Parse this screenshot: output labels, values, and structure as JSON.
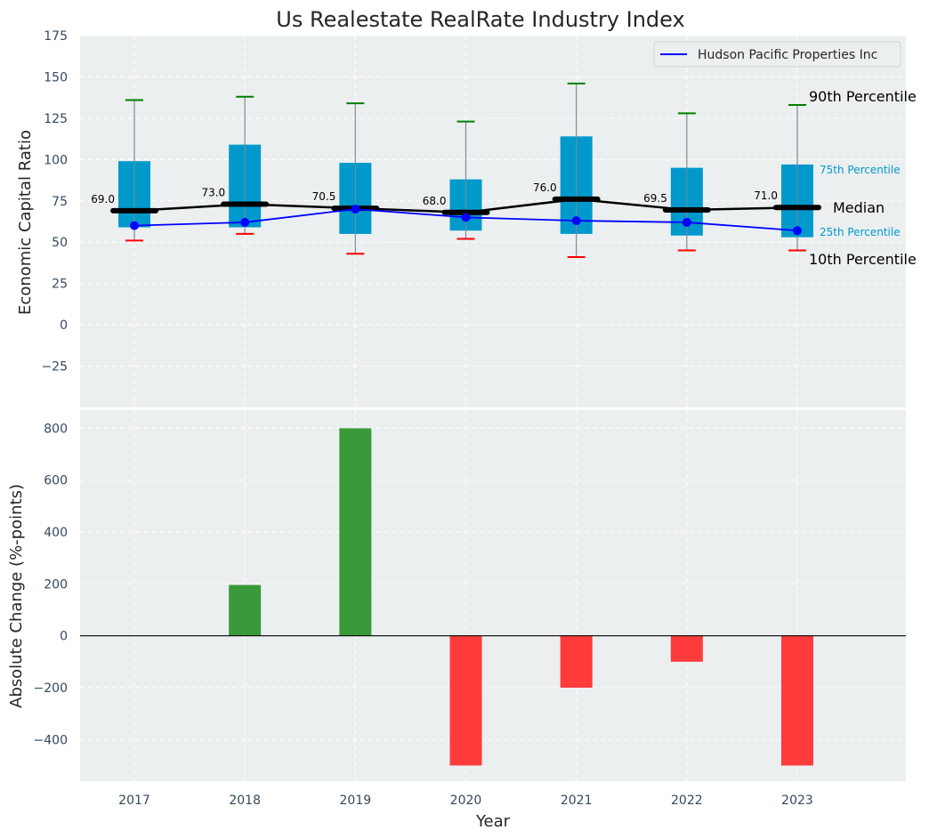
{
  "chart_data": [
    {
      "type": "box",
      "title": "Us Realestate RealRate Industry Index",
      "ylabel": "Economic Capital Ratio",
      "ylim": [
        -50,
        175
      ],
      "yticks": [
        -25,
        0,
        25,
        50,
        75,
        100,
        125,
        150,
        175
      ],
      "categories": [
        "2017",
        "2018",
        "2019",
        "2020",
        "2021",
        "2022",
        "2023"
      ],
      "p10": [
        51,
        55,
        43,
        52,
        41,
        45,
        45
      ],
      "p25": [
        59,
        59,
        55,
        57,
        55,
        54,
        53
      ],
      "median": [
        69.0,
        73.0,
        70.5,
        68.0,
        76.0,
        69.5,
        71.0
      ],
      "median_labels": [
        "69.0",
        "73.0",
        "70.5",
        "68.0",
        "76.0",
        "69.5",
        "71.0"
      ],
      "p75": [
        99,
        109,
        98,
        88,
        114,
        95,
        97
      ],
      "p90": [
        136,
        138,
        134,
        123,
        146,
        128,
        133
      ],
      "series": [
        {
          "name": "Hudson Pacific Properties Inc",
          "values": [
            60,
            62,
            70,
            65,
            63,
            62,
            57
          ],
          "color": "#0000ff"
        }
      ],
      "annotations": {
        "p90": "90th Percentile",
        "p75": "75th Percentile",
        "median": "Median",
        "p25": "25th Percentile",
        "p10": "10th Percentile"
      },
      "legend_position": "top-right",
      "grid": true
    },
    {
      "type": "bar",
      "xlabel": "Year",
      "ylabel": "Absolute Change (%-points)",
      "ylim": [
        -560,
        870
      ],
      "yticks": [
        -400,
        -200,
        0,
        200,
        400,
        600,
        800
      ],
      "categories": [
        "2017",
        "2018",
        "2019",
        "2020",
        "2021",
        "2022",
        "2023"
      ],
      "values": [
        0,
        196,
        800,
        -500,
        -200,
        -100,
        -500
      ],
      "grid": true
    }
  ],
  "colors": {
    "background": "#ebeff0",
    "box": "#0099cc",
    "whisker": "#7f8c8d",
    "p90_cap": "#008000",
    "p10_cap": "#ff0000",
    "median_line": "#000000",
    "positive_bar": "#3a9a3a",
    "negative_bar": "#ff3b3b",
    "tick_text": "#34495e"
  },
  "tick_format": {
    "minus": "−"
  }
}
